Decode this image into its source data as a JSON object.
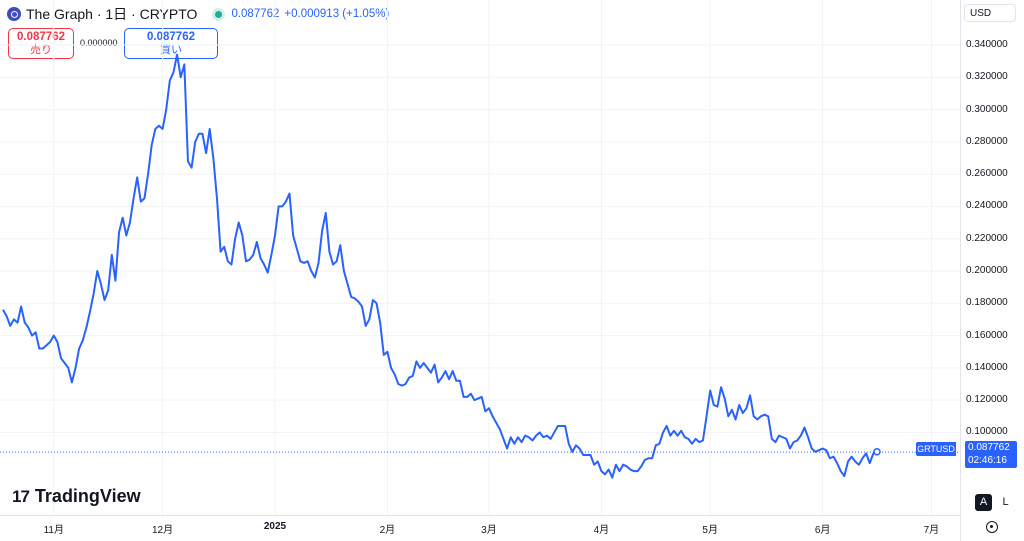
{
  "header": {
    "title": "The Graph · 1日 · CRYPTO",
    "last": "0.087762",
    "change": "+0.000913 (+1.05%)"
  },
  "trade": {
    "sell_price": "0.087762",
    "sell_label": "売り",
    "spread": "0.000000",
    "buy_price": "0.087762",
    "buy_label": "買い"
  },
  "currency": "USD",
  "symbol_tag": "GRTUSD",
  "last_price_tag": "0.087762",
  "countdown": "02:46:16",
  "brand": "TradingView",
  "controls": {
    "auto": "A",
    "log": "L"
  },
  "colors": {
    "line": "#2962ff",
    "accent": "#2962ff",
    "sell": "#f23645",
    "live": "#22ab94"
  },
  "icons": [
    "the-graph-logo-icon",
    "live-status-icon",
    "tradingview-logo-icon",
    "settings-gear-icon"
  ],
  "chart_data": {
    "type": "line",
    "y_ticks": [
      "0.340000",
      "0.320000",
      "0.300000",
      "0.280000",
      "0.260000",
      "0.240000",
      "0.220000",
      "0.200000",
      "0.180000",
      "0.160000",
      "0.140000",
      "0.120000",
      "0.100000"
    ],
    "y_tick_values": [
      0.34,
      0.32,
      0.3,
      0.28,
      0.26,
      0.24,
      0.22,
      0.2,
      0.18,
      0.16,
      0.14,
      0.12,
      0.1
    ],
    "ylim": [
      0.065,
      0.355
    ],
    "x_ticks": [
      {
        "label": "11月",
        "index": 14,
        "bold": false
      },
      {
        "label": "12月",
        "index": 44,
        "bold": false
      },
      {
        "label": "2025",
        "index": 75,
        "bold": true
      },
      {
        "label": "2月",
        "index": 106,
        "bold": false
      },
      {
        "label": "3月",
        "index": 134,
        "bold": false
      },
      {
        "label": "4月",
        "index": 165,
        "bold": false
      },
      {
        "label": "5月",
        "index": 195,
        "bold": false
      },
      {
        "label": "6月",
        "index": 226,
        "bold": false
      },
      {
        "label": "7月",
        "index": 256,
        "bold": false
      }
    ],
    "grid": true,
    "series": [
      {
        "values": [
          0.176,
          0.172,
          0.166,
          0.17,
          0.168,
          0.178,
          0.168,
          0.165,
          0.16,
          0.162,
          0.152,
          0.152,
          0.154,
          0.156,
          0.16,
          0.156,
          0.146,
          0.143,
          0.14,
          0.131,
          0.14,
          0.152,
          0.157,
          0.165,
          0.175,
          0.186,
          0.2,
          0.192,
          0.182,
          0.188,
          0.21,
          0.194,
          0.224,
          0.233,
          0.222,
          0.23,
          0.245,
          0.258,
          0.243,
          0.245,
          0.26,
          0.278,
          0.288,
          0.29,
          0.288,
          0.3,
          0.318,
          0.323,
          0.334,
          0.32,
          0.328,
          0.268,
          0.264,
          0.28,
          0.285,
          0.285,
          0.273,
          0.288,
          0.27,
          0.245,
          0.212,
          0.215,
          0.206,
          0.204,
          0.22,
          0.23,
          0.222,
          0.206,
          0.207,
          0.21,
          0.218,
          0.208,
          0.204,
          0.199,
          0.21,
          0.222,
          0.24,
          0.24,
          0.243,
          0.248,
          0.222,
          0.214,
          0.206,
          0.205,
          0.206,
          0.2,
          0.196,
          0.205,
          0.225,
          0.236,
          0.212,
          0.204,
          0.206,
          0.216,
          0.2,
          0.192,
          0.184,
          0.183,
          0.181,
          0.178,
          0.166,
          0.17,
          0.182,
          0.18,
          0.168,
          0.148,
          0.15,
          0.14,
          0.136,
          0.13,
          0.129,
          0.13,
          0.134,
          0.135,
          0.144,
          0.14,
          0.143,
          0.14,
          0.137,
          0.142,
          0.131,
          0.134,
          0.138,
          0.133,
          0.138,
          0.132,
          0.132,
          0.122,
          0.122,
          0.124,
          0.12,
          0.121,
          0.122,
          0.113,
          0.115,
          0.11,
          0.106,
          0.102,
          0.096,
          0.09,
          0.097,
          0.093,
          0.097,
          0.094,
          0.098,
          0.097,
          0.095,
          0.098,
          0.1,
          0.097,
          0.098,
          0.096,
          0.1,
          0.104,
          0.104,
          0.104,
          0.093,
          0.088,
          0.092,
          0.09,
          0.086,
          0.086,
          0.086,
          0.08,
          0.082,
          0.076,
          0.074,
          0.077,
          0.072,
          0.08,
          0.076,
          0.08,
          0.079,
          0.077,
          0.076,
          0.076,
          0.079,
          0.083,
          0.084,
          0.084,
          0.092,
          0.093,
          0.1,
          0.104,
          0.098,
          0.101,
          0.098,
          0.101,
          0.097,
          0.096,
          0.093,
          0.096,
          0.094,
          0.095,
          0.11,
          0.126,
          0.117,
          0.116,
          0.128,
          0.121,
          0.11,
          0.114,
          0.108,
          0.117,
          0.112,
          0.115,
          0.123,
          0.11,
          0.108,
          0.11,
          0.111,
          0.11,
          0.096,
          0.094,
          0.098,
          0.097,
          0.096,
          0.09,
          0.094,
          0.095,
          0.098,
          0.103,
          0.097,
          0.09,
          0.088,
          0.089,
          0.09,
          0.089,
          0.084,
          0.085,
          0.081,
          0.076,
          0.073,
          0.082,
          0.085,
          0.082,
          0.08,
          0.084,
          0.087,
          0.081,
          0.087,
          0.088
        ]
      }
    ],
    "last_value": 0.087762
  }
}
